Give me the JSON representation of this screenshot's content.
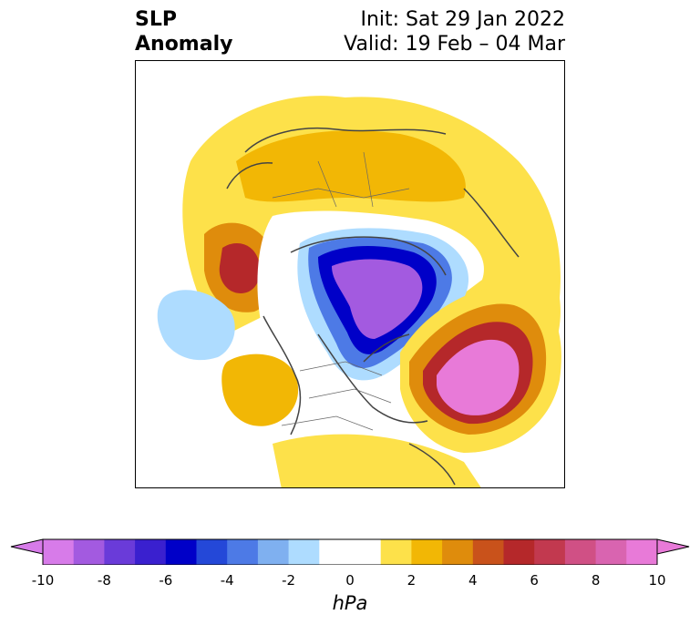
{
  "title": {
    "variable_line1": "SLP",
    "variable_line2": "Anomaly",
    "init": "Init: Sat 29 Jan 2022",
    "valid": "Valid: 19 Feb – 04 Mar"
  },
  "colorbar": {
    "unit_label": "hPa",
    "tick_labels": [
      "-10",
      "-8",
      "-6",
      "-4",
      "-2",
      "0",
      "2",
      "4",
      "6",
      "8",
      "10"
    ],
    "levels": [
      -10,
      -9,
      -8,
      -7,
      -6,
      -5,
      -4,
      -3,
      -2,
      -1,
      1,
      2,
      3,
      4,
      5,
      6,
      7,
      8,
      9,
      10
    ],
    "colors": [
      "#d77be9",
      "#a35ae0",
      "#6a3bd9",
      "#3a20cf",
      "#0000c8",
      "#2448d8",
      "#4d7ae6",
      "#7fb0f0",
      "#aedcff",
      "#ffffff",
      "#fde14a",
      "#f2b705",
      "#df8c0c",
      "#c9521b",
      "#b5282a",
      "#c2394f",
      "#d05085",
      "#d964b0",
      "#e87ad8"
    ],
    "extend_low_color": "#d77be9",
    "extend_high_color": "#e87ad8"
  },
  "map": {
    "projection": "north polar stereographic",
    "features": [
      {
        "name": "negative-anomaly-arctic",
        "min_hpa": -10
      },
      {
        "name": "positive-anomaly-north-atlantic",
        "max_hpa": 10
      },
      {
        "name": "positive-anomaly-north-pacific-coast",
        "max_hpa": 7
      },
      {
        "name": "negative-anomaly-central-pacific",
        "min_hpa": -3
      }
    ]
  }
}
